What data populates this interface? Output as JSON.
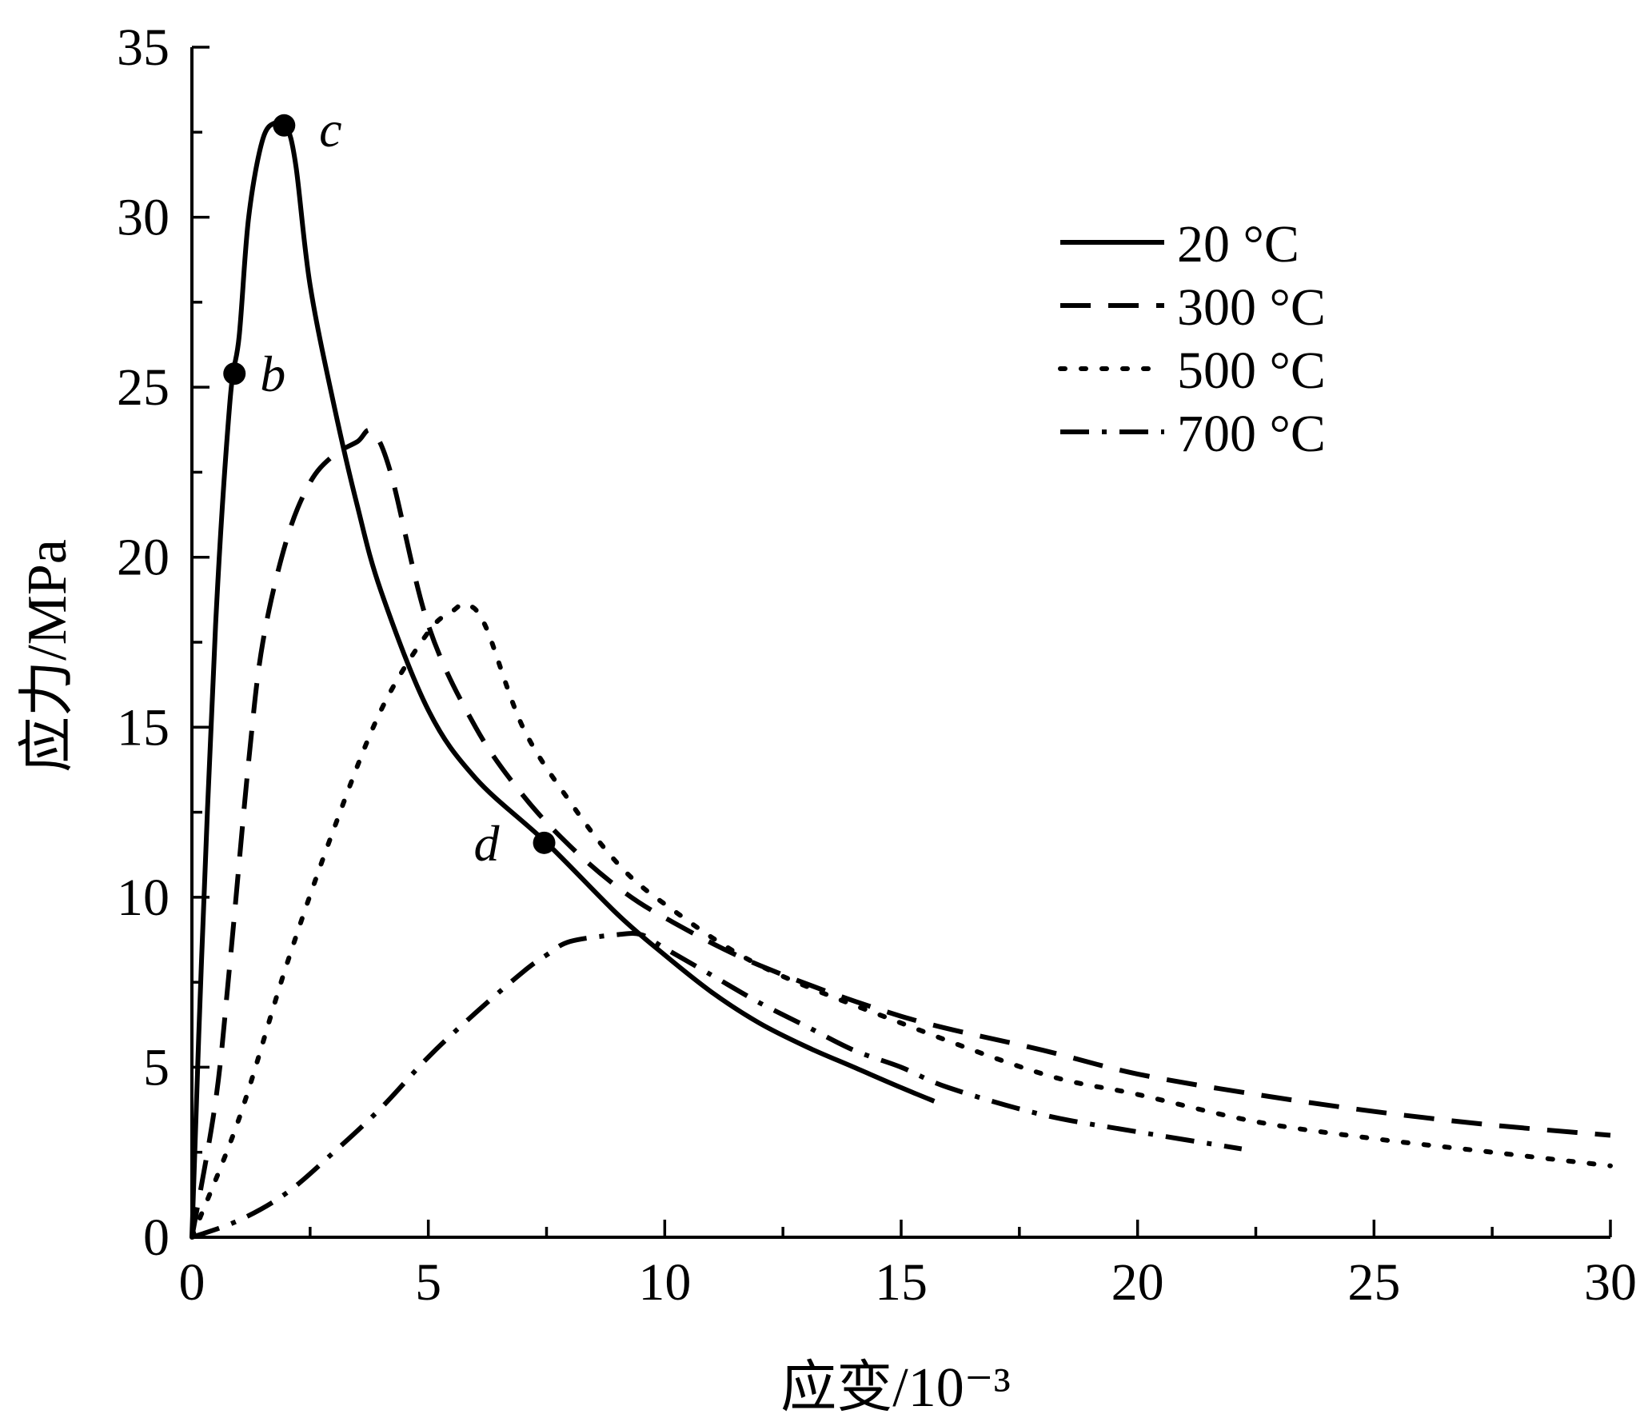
{
  "chart_data": {
    "type": "line",
    "xlabel": "应变/10⁻³",
    "ylabel": "应力/MPa",
    "xlim": [
      0,
      30
    ],
    "ylim": [
      0,
      35
    ],
    "xticks": [
      0,
      5,
      10,
      15,
      20,
      25,
      30
    ],
    "yticks": [
      0,
      5,
      10,
      15,
      20,
      25,
      30,
      35
    ],
    "grid": false,
    "legend_position": "top-right",
    "series": [
      {
        "name": "20 °C",
        "dash": "solid",
        "x": [
          0,
          0.2,
          0.5,
          0.8,
          1.0,
          1.2,
          1.5,
          1.8,
          2.0,
          2.2,
          2.5,
          3.0,
          3.5,
          4.0,
          5.0,
          6.0,
          7.5,
          9.0,
          10.0,
          11.0,
          12.0,
          13.0,
          14.0,
          15.0,
          15.7
        ],
        "y": [
          0,
          8,
          18,
          24.5,
          26.5,
          30,
          32.3,
          32.8,
          32.7,
          31.5,
          28,
          24.5,
          21.5,
          19,
          15.5,
          13.5,
          11.6,
          9.5,
          8.3,
          7.2,
          6.3,
          5.6,
          5.0,
          4.4,
          4.0
        ]
      },
      {
        "name": "300 °C",
        "dash": "dashed",
        "x": [
          0,
          0.5,
          0.8,
          1.2,
          1.5,
          2.0,
          2.5,
          3.0,
          3.5,
          3.8,
          4.2,
          5.0,
          6.0,
          7.0,
          8.0,
          9.0,
          10.0,
          12.0,
          15.0,
          18.0,
          20.0,
          22.5,
          25.0,
          27.5,
          30.0
        ],
        "y": [
          0,
          4,
          8,
          14,
          17.5,
          20.5,
          22.2,
          23.0,
          23.4,
          23.7,
          22.5,
          18.0,
          15.0,
          13.0,
          11.5,
          10.3,
          9.4,
          8.0,
          6.5,
          5.5,
          4.8,
          4.2,
          3.7,
          3.3,
          3.0
        ]
      },
      {
        "name": "500 °C",
        "dash": "dotted",
        "x": [
          0,
          1.0,
          2.0,
          3.0,
          4.0,
          5.0,
          5.5,
          5.8,
          6.2,
          7.0,
          8.0,
          9.0,
          10.0,
          12.0,
          15.0,
          18.0,
          20.0,
          22.5,
          25.0,
          27.5,
          30.0
        ],
        "y": [
          0,
          3.5,
          8,
          12,
          15.5,
          17.8,
          18.4,
          18.6,
          18.0,
          15.0,
          12.8,
          11.0,
          9.8,
          8.0,
          6.3,
          4.8,
          4.2,
          3.4,
          2.9,
          2.5,
          2.1
        ]
      },
      {
        "name": "700 °C",
        "dash": "dashdot",
        "x": [
          0,
          1.0,
          2.0,
          3.0,
          4.0,
          5.0,
          6.0,
          7.0,
          7.5,
          8.0,
          9.0,
          9.5,
          10.0,
          11.0,
          12.0,
          13.0,
          14.0,
          15.0,
          16.0,
          18.0,
          20.0,
          22.2
        ],
        "y": [
          0,
          0.5,
          1.3,
          2.5,
          3.8,
          5.3,
          6.6,
          7.8,
          8.3,
          8.7,
          8.9,
          8.9,
          8.5,
          7.7,
          6.9,
          6.2,
          5.5,
          5.0,
          4.4,
          3.6,
          3.1,
          2.6
        ]
      }
    ],
    "annotations": [
      {
        "label": "b",
        "x": 0.9,
        "y": 25.4
      },
      {
        "label": "c",
        "x": 1.95,
        "y": 32.7
      },
      {
        "label": "d",
        "x": 7.45,
        "y": 11.6
      }
    ]
  }
}
